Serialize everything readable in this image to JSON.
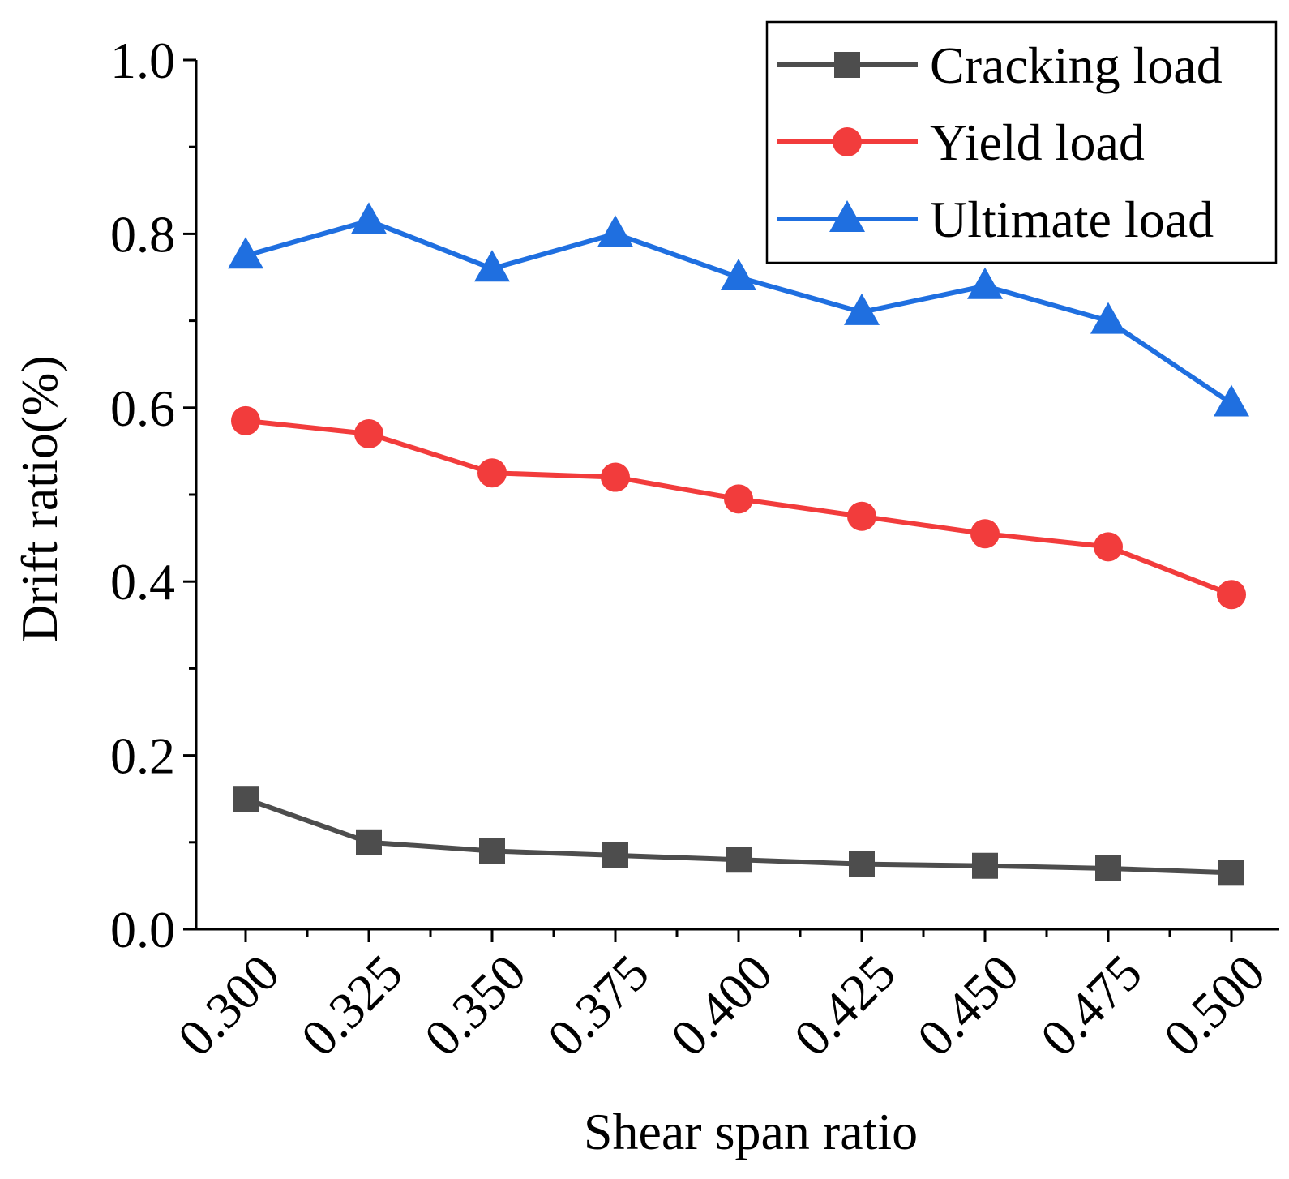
{
  "chart_data": {
    "type": "line",
    "title": "",
    "xlabel": "Shear span ratio",
    "ylabel": "Drift ratio(%)",
    "categories": [
      "0.300",
      "0.325",
      "0.350",
      "0.375",
      "0.400",
      "0.425",
      "0.450",
      "0.475",
      "0.500"
    ],
    "y_tick_labels": [
      "0.0",
      "0.2",
      "0.4",
      "0.6",
      "0.8",
      "1.0"
    ],
    "y_ticks": [
      0.0,
      0.2,
      0.4,
      0.6,
      0.8,
      1.0
    ],
    "ylim": [
      0.0,
      1.0
    ],
    "grid": false,
    "legend_position": "top-right",
    "series": [
      {
        "name": "Cracking load",
        "marker": "square",
        "color": "#4d4d4d",
        "values": [
          0.15,
          0.1,
          0.09,
          0.085,
          0.08,
          0.075,
          0.073,
          0.07,
          0.065
        ]
      },
      {
        "name": "Yield load",
        "marker": "circle",
        "color": "#f23c3c",
        "values": [
          0.585,
          0.57,
          0.525,
          0.52,
          0.495,
          0.475,
          0.455,
          0.44,
          0.385
        ]
      },
      {
        "name": "Ultimate load",
        "marker": "triangle",
        "color": "#1f6fe0",
        "values": [
          0.775,
          0.815,
          0.76,
          0.8,
          0.75,
          0.71,
          0.74,
          0.7,
          0.605
        ]
      }
    ]
  }
}
